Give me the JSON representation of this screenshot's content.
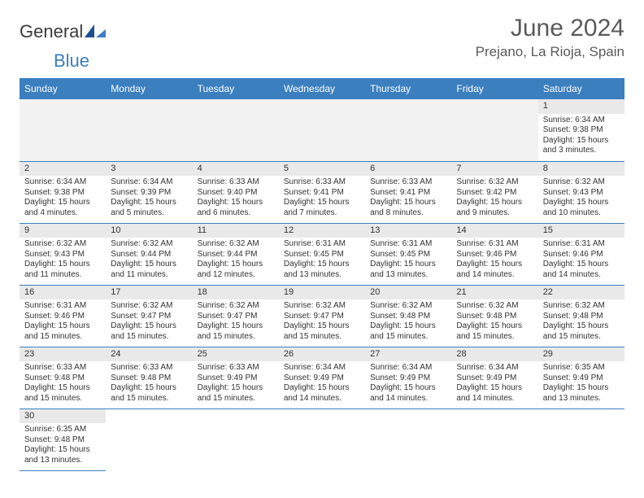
{
  "header": {
    "logo_general": "General",
    "logo_blue": "Blue",
    "month_title": "June 2024",
    "location": "Prejano, La Rioja, Spain"
  },
  "day_headers": [
    "Sunday",
    "Monday",
    "Tuesday",
    "Wednesday",
    "Thursday",
    "Friday",
    "Saturday"
  ],
  "colors": {
    "header_bg": "#3b7fbf",
    "header_fg": "#ffffff",
    "daynum_bg": "#e9e9e9",
    "border": "#3b7fbf",
    "text": "#333333"
  },
  "weeks": [
    [
      null,
      null,
      null,
      null,
      null,
      null,
      {
        "n": "1",
        "sunrise": "Sunrise: 6:34 AM",
        "sunset": "Sunset: 9:38 PM",
        "daylight": "Daylight: 15 hours and 3 minutes."
      }
    ],
    [
      {
        "n": "2",
        "sunrise": "Sunrise: 6:34 AM",
        "sunset": "Sunset: 9:38 PM",
        "daylight": "Daylight: 15 hours and 4 minutes."
      },
      {
        "n": "3",
        "sunrise": "Sunrise: 6:34 AM",
        "sunset": "Sunset: 9:39 PM",
        "daylight": "Daylight: 15 hours and 5 minutes."
      },
      {
        "n": "4",
        "sunrise": "Sunrise: 6:33 AM",
        "sunset": "Sunset: 9:40 PM",
        "daylight": "Daylight: 15 hours and 6 minutes."
      },
      {
        "n": "5",
        "sunrise": "Sunrise: 6:33 AM",
        "sunset": "Sunset: 9:41 PM",
        "daylight": "Daylight: 15 hours and 7 minutes."
      },
      {
        "n": "6",
        "sunrise": "Sunrise: 6:33 AM",
        "sunset": "Sunset: 9:41 PM",
        "daylight": "Daylight: 15 hours and 8 minutes."
      },
      {
        "n": "7",
        "sunrise": "Sunrise: 6:32 AM",
        "sunset": "Sunset: 9:42 PM",
        "daylight": "Daylight: 15 hours and 9 minutes."
      },
      {
        "n": "8",
        "sunrise": "Sunrise: 6:32 AM",
        "sunset": "Sunset: 9:43 PM",
        "daylight": "Daylight: 15 hours and 10 minutes."
      }
    ],
    [
      {
        "n": "9",
        "sunrise": "Sunrise: 6:32 AM",
        "sunset": "Sunset: 9:43 PM",
        "daylight": "Daylight: 15 hours and 11 minutes."
      },
      {
        "n": "10",
        "sunrise": "Sunrise: 6:32 AM",
        "sunset": "Sunset: 9:44 PM",
        "daylight": "Daylight: 15 hours and 11 minutes."
      },
      {
        "n": "11",
        "sunrise": "Sunrise: 6:32 AM",
        "sunset": "Sunset: 9:44 PM",
        "daylight": "Daylight: 15 hours and 12 minutes."
      },
      {
        "n": "12",
        "sunrise": "Sunrise: 6:31 AM",
        "sunset": "Sunset: 9:45 PM",
        "daylight": "Daylight: 15 hours and 13 minutes."
      },
      {
        "n": "13",
        "sunrise": "Sunrise: 6:31 AM",
        "sunset": "Sunset: 9:45 PM",
        "daylight": "Daylight: 15 hours and 13 minutes."
      },
      {
        "n": "14",
        "sunrise": "Sunrise: 6:31 AM",
        "sunset": "Sunset: 9:46 PM",
        "daylight": "Daylight: 15 hours and 14 minutes."
      },
      {
        "n": "15",
        "sunrise": "Sunrise: 6:31 AM",
        "sunset": "Sunset: 9:46 PM",
        "daylight": "Daylight: 15 hours and 14 minutes."
      }
    ],
    [
      {
        "n": "16",
        "sunrise": "Sunrise: 6:31 AM",
        "sunset": "Sunset: 9:46 PM",
        "daylight": "Daylight: 15 hours and 15 minutes."
      },
      {
        "n": "17",
        "sunrise": "Sunrise: 6:32 AM",
        "sunset": "Sunset: 9:47 PM",
        "daylight": "Daylight: 15 hours and 15 minutes."
      },
      {
        "n": "18",
        "sunrise": "Sunrise: 6:32 AM",
        "sunset": "Sunset: 9:47 PM",
        "daylight": "Daylight: 15 hours and 15 minutes."
      },
      {
        "n": "19",
        "sunrise": "Sunrise: 6:32 AM",
        "sunset": "Sunset: 9:47 PM",
        "daylight": "Daylight: 15 hours and 15 minutes."
      },
      {
        "n": "20",
        "sunrise": "Sunrise: 6:32 AM",
        "sunset": "Sunset: 9:48 PM",
        "daylight": "Daylight: 15 hours and 15 minutes."
      },
      {
        "n": "21",
        "sunrise": "Sunrise: 6:32 AM",
        "sunset": "Sunset: 9:48 PM",
        "daylight": "Daylight: 15 hours and 15 minutes."
      },
      {
        "n": "22",
        "sunrise": "Sunrise: 6:32 AM",
        "sunset": "Sunset: 9:48 PM",
        "daylight": "Daylight: 15 hours and 15 minutes."
      }
    ],
    [
      {
        "n": "23",
        "sunrise": "Sunrise: 6:33 AM",
        "sunset": "Sunset: 9:48 PM",
        "daylight": "Daylight: 15 hours and 15 minutes."
      },
      {
        "n": "24",
        "sunrise": "Sunrise: 6:33 AM",
        "sunset": "Sunset: 9:48 PM",
        "daylight": "Daylight: 15 hours and 15 minutes."
      },
      {
        "n": "25",
        "sunrise": "Sunrise: 6:33 AM",
        "sunset": "Sunset: 9:49 PM",
        "daylight": "Daylight: 15 hours and 15 minutes."
      },
      {
        "n": "26",
        "sunrise": "Sunrise: 6:34 AM",
        "sunset": "Sunset: 9:49 PM",
        "daylight": "Daylight: 15 hours and 14 minutes."
      },
      {
        "n": "27",
        "sunrise": "Sunrise: 6:34 AM",
        "sunset": "Sunset: 9:49 PM",
        "daylight": "Daylight: 15 hours and 14 minutes."
      },
      {
        "n": "28",
        "sunrise": "Sunrise: 6:34 AM",
        "sunset": "Sunset: 9:49 PM",
        "daylight": "Daylight: 15 hours and 14 minutes."
      },
      {
        "n": "29",
        "sunrise": "Sunrise: 6:35 AM",
        "sunset": "Sunset: 9:49 PM",
        "daylight": "Daylight: 15 hours and 13 minutes."
      }
    ],
    [
      {
        "n": "30",
        "sunrise": "Sunrise: 6:35 AM",
        "sunset": "Sunset: 9:48 PM",
        "daylight": "Daylight: 15 hours and 13 minutes."
      },
      null,
      null,
      null,
      null,
      null,
      null
    ]
  ]
}
